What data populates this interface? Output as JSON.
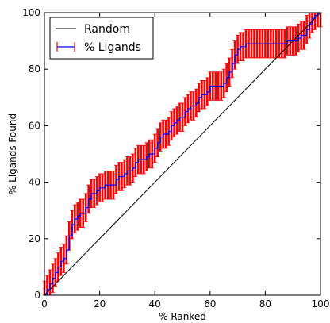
{
  "chart_data": {
    "type": "line",
    "title": "",
    "xlabel": "% Ranked",
    "ylabel": "% Ligands Found",
    "xlim": [
      0,
      100
    ],
    "ylim": [
      0,
      100
    ],
    "xticks": [
      "0",
      "20",
      "40",
      "60",
      "80",
      "100"
    ],
    "yticks": [
      "0",
      "20",
      "40",
      "60",
      "80",
      "100"
    ],
    "grid": false,
    "legend_position": "top-left",
    "legend": [
      "Random",
      "% Ligands"
    ],
    "colors": {
      "random": "#000000",
      "ligands_line": "#0000ff",
      "ligands_error": "#ff0000"
    },
    "series": [
      {
        "name": "Random",
        "x": [
          0,
          100
        ],
        "y": [
          0,
          100
        ]
      },
      {
        "name": "% Ligands",
        "x": [
          0,
          1,
          2,
          3,
          4,
          5,
          6,
          7,
          8,
          9,
          10,
          11,
          12,
          13,
          14,
          15,
          16,
          17,
          18,
          19,
          20,
          21,
          22,
          23,
          24,
          25,
          26,
          27,
          28,
          29,
          30,
          31,
          32,
          33,
          34,
          35,
          36,
          37,
          38,
          39,
          40,
          41,
          42,
          43,
          44,
          45,
          46,
          47,
          48,
          49,
          50,
          51,
          52,
          53,
          54,
          55,
          56,
          57,
          58,
          59,
          60,
          61,
          62,
          63,
          64,
          65,
          66,
          67,
          68,
          69,
          70,
          71,
          72,
          73,
          74,
          75,
          76,
          77,
          78,
          79,
          80,
          81,
          82,
          83,
          84,
          85,
          86,
          87,
          88,
          89,
          90,
          91,
          92,
          93,
          94,
          95,
          96,
          97,
          98,
          99,
          100
        ],
        "y": [
          0,
          2,
          4,
          6,
          8,
          10,
          12,
          13,
          16,
          21,
          25,
          27,
          28,
          29,
          29,
          31,
          34,
          36,
          36,
          37,
          38,
          38,
          39,
          39,
          39,
          39,
          41,
          42,
          42,
          43,
          44,
          44,
          45,
          47,
          48,
          48,
          48,
          49,
          50,
          50,
          52,
          54,
          56,
          57,
          57,
          58,
          60,
          61,
          62,
          63,
          63,
          65,
          66,
          67,
          67,
          68,
          70,
          71,
          71,
          72,
          74,
          74,
          74,
          74,
          74,
          75,
          77,
          79,
          82,
          85,
          87,
          88,
          88,
          89,
          89,
          89,
          89,
          89,
          89,
          89,
          89,
          89,
          89,
          89,
          89,
          89,
          89,
          89,
          90,
          90,
          90,
          90,
          91,
          92,
          92,
          94,
          96,
          98,
          99,
          100,
          100
        ],
        "error": 5
      }
    ]
  }
}
